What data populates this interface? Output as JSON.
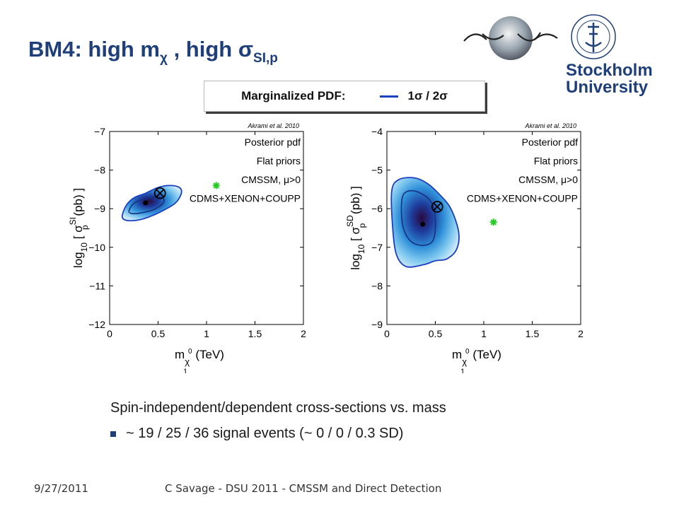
{
  "slide": {
    "title_main": "BM4:  high m",
    "title_chi": "χ",
    "title_mid": " , high ",
    "title_sigma": "σ",
    "title_sub": "SI,p",
    "legend_label": "Marginalized PDF:",
    "legend_series": "1σ / 2σ",
    "caption": "Spin-independent/dependent cross-sections vs. mass",
    "bullet": "~ 19 / 25 / 36 signal events (~ 0 / 0 / 0.3 SD)",
    "footer_date": "9/27/2011",
    "footer_text": "C Savage - DSU 2011 - CMSSM and Direct Detection",
    "logo_text": "Stockholm University"
  },
  "colors": {
    "title": "#1f3f7a",
    "contour": "#1b3fbf",
    "marker_green": "#22cc22"
  },
  "chart_data": [
    {
      "type": "heatmap",
      "citation": "Akrami et al. 2010",
      "annotations": [
        "Posterior pdf",
        "Flat priors",
        "CMSSM, μ>0",
        "CDMS+XENON+COUPP"
      ],
      "xlabel": "m",
      "xlabel_sub": "χ",
      "xlabel_sub2": "1",
      "xlabel_sup": "0",
      "xlabel_unit": " (TeV)",
      "ylabel_pre": "log",
      "ylabel_sub": "10",
      "ylabel_mid": " [ σ",
      "ylabel_sup": "SI",
      "ylabel_sub2": "p",
      "ylabel_post": " (pb) ]",
      "xlim": [
        0,
        2
      ],
      "ylim": [
        -12,
        -7
      ],
      "xticks": [
        "0",
        "0.5",
        "1",
        "1.5",
        "2"
      ],
      "yticks": [
        "−12",
        "−11",
        "−10",
        "−9",
        "−8",
        "−7"
      ],
      "best_fit": {
        "x": 0.37,
        "y": -8.85
      },
      "benchmark": {
        "x": 0.52,
        "y": -8.6
      },
      "green_star": {
        "x": 1.1,
        "y": -8.4
      },
      "contour_2sigma": [
        [
          0.13,
          -9.2
        ],
        [
          0.17,
          -8.92
        ],
        [
          0.25,
          -8.72
        ],
        [
          0.37,
          -8.6
        ],
        [
          0.5,
          -8.45
        ],
        [
          0.62,
          -8.4
        ],
        [
          0.72,
          -8.45
        ],
        [
          0.74,
          -8.6
        ],
        [
          0.68,
          -8.85
        ],
        [
          0.55,
          -9.05
        ],
        [
          0.4,
          -9.22
        ],
        [
          0.28,
          -9.3
        ],
        [
          0.17,
          -9.3
        ]
      ],
      "contour_1sigma": [
        [
          0.2,
          -9.05
        ],
        [
          0.25,
          -8.86
        ],
        [
          0.35,
          -8.75
        ],
        [
          0.46,
          -8.7
        ],
        [
          0.55,
          -8.72
        ],
        [
          0.55,
          -8.86
        ],
        [
          0.45,
          -9.03
        ],
        [
          0.3,
          -9.12
        ],
        [
          0.22,
          -9.12
        ]
      ]
    },
    {
      "type": "heatmap",
      "citation": "Akrami et al. 2010",
      "annotations": [
        "Posterior pdf",
        "Flat priors",
        "CMSSM, μ>0",
        "CDMS+XENON+COUPP"
      ],
      "xlabel": "m",
      "xlabel_sub": "χ",
      "xlabel_sub2": "1",
      "xlabel_sup": "0",
      "xlabel_unit": " (TeV)",
      "ylabel_pre": "log",
      "ylabel_sub": "10",
      "ylabel_mid": " [ σ",
      "ylabel_sup": "SD",
      "ylabel_sub2": "p",
      "ylabel_post": " (pb) ]",
      "xlim": [
        0,
        2
      ],
      "ylim": [
        -9,
        -4
      ],
      "xticks": [
        "0",
        "0.5",
        "1",
        "1.5",
        "2"
      ],
      "yticks": [
        "−9",
        "−8",
        "−7",
        "−6",
        "−5",
        "−4"
      ],
      "best_fit": {
        "x": 0.37,
        "y": -6.4
      },
      "benchmark": {
        "x": 0.52,
        "y": -5.95
      },
      "green_star": {
        "x": 1.1,
        "y": -6.35
      },
      "contour_2sigma": [
        [
          0.05,
          -5.55
        ],
        [
          0.12,
          -5.25
        ],
        [
          0.28,
          -5.2
        ],
        [
          0.42,
          -5.35
        ],
        [
          0.55,
          -5.65
        ],
        [
          0.66,
          -6.0
        ],
        [
          0.74,
          -6.6
        ],
        [
          0.72,
          -7.05
        ],
        [
          0.62,
          -7.3
        ],
        [
          0.5,
          -7.35
        ],
        [
          0.38,
          -7.45
        ],
        [
          0.2,
          -7.5
        ],
        [
          0.1,
          -7.2
        ],
        [
          0.06,
          -6.5
        ]
      ],
      "contour_1sigma": [
        [
          0.15,
          -5.95
        ],
        [
          0.18,
          -5.6
        ],
        [
          0.3,
          -5.55
        ],
        [
          0.45,
          -5.8
        ],
        [
          0.5,
          -6.25
        ],
        [
          0.48,
          -6.8
        ],
        [
          0.38,
          -6.95
        ],
        [
          0.25,
          -6.85
        ],
        [
          0.17,
          -6.5
        ]
      ]
    }
  ]
}
